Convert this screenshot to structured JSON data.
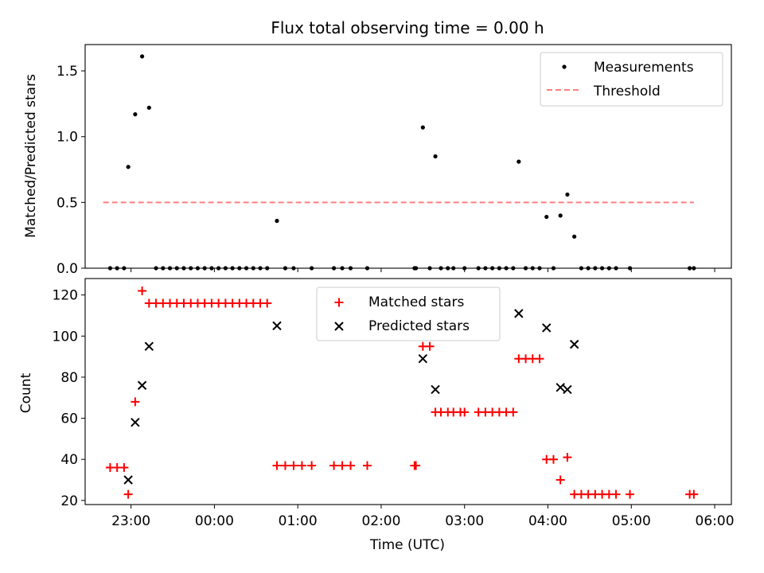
{
  "chart_data": [
    {
      "type": "scatter",
      "title": "Flux total observing time = 0.00 h",
      "xlabel": "",
      "ylabel": "Matched/Predicted stars",
      "xlim": [
        "22:27",
        "06:12"
      ],
      "ylim": [
        0,
        1.7
      ],
      "yticks": [
        0.0,
        0.5,
        1.0,
        1.5
      ],
      "ytick_labels": [
        "0.0",
        "0.5",
        "1.0",
        "1.5"
      ],
      "legend_position": "top-right",
      "series": [
        {
          "name": "Measurements",
          "kind": "dots",
          "color": "#000000",
          "points": [
            [
              "22:45",
              0
            ],
            [
              "22:50",
              0
            ],
            [
              "22:55",
              0
            ],
            [
              "22:58",
              0.77
            ],
            [
              "23:03",
              1.17
            ],
            [
              "23:08",
              1.61
            ],
            [
              "23:13",
              1.22
            ],
            [
              "23:18",
              0
            ],
            [
              "23:23",
              0
            ],
            [
              "23:28",
              0
            ],
            [
              "23:33",
              0
            ],
            [
              "23:38",
              0
            ],
            [
              "23:43",
              0
            ],
            [
              "23:48",
              0
            ],
            [
              "23:53",
              0
            ],
            [
              "23:58",
              0
            ],
            [
              "00:03",
              0
            ],
            [
              "00:08",
              0
            ],
            [
              "00:13",
              0
            ],
            [
              "00:18",
              0
            ],
            [
              "00:23",
              0
            ],
            [
              "00:28",
              0
            ],
            [
              "00:33",
              0
            ],
            [
              "00:38",
              0
            ],
            [
              "00:45",
              0.36
            ],
            [
              "00:51",
              0
            ],
            [
              "00:57",
              0
            ],
            [
              "01:10",
              0
            ],
            [
              "01:26",
              0
            ],
            [
              "01:32",
              0
            ],
            [
              "01:38",
              0
            ],
            [
              "01:50",
              0
            ],
            [
              "02:24",
              0
            ],
            [
              "02:25",
              0
            ],
            [
              "02:30",
              1.07
            ],
            [
              "02:35",
              0
            ],
            [
              "02:39",
              0.85
            ],
            [
              "02:43",
              0
            ],
            [
              "02:48",
              0
            ],
            [
              "02:52",
              0
            ],
            [
              "03:00",
              0
            ],
            [
              "03:10",
              0
            ],
            [
              "03:15",
              0
            ],
            [
              "03:20",
              0
            ],
            [
              "03:25",
              0
            ],
            [
              "03:30",
              0
            ],
            [
              "03:35",
              0
            ],
            [
              "03:39",
              0.81
            ],
            [
              "03:44",
              0
            ],
            [
              "03:49",
              0
            ],
            [
              "03:54",
              0
            ],
            [
              "03:59",
              0.39
            ],
            [
              "04:04",
              0
            ],
            [
              "04:09",
              0.4
            ],
            [
              "04:14",
              0.56
            ],
            [
              "04:19",
              0.24
            ],
            [
              "04:24",
              0
            ],
            [
              "04:29",
              0
            ],
            [
              "04:34",
              0
            ],
            [
              "04:39",
              0
            ],
            [
              "04:44",
              0
            ],
            [
              "04:49",
              0
            ],
            [
              "04:59",
              0
            ],
            [
              "05:42",
              0
            ],
            [
              "05:45",
              0
            ]
          ]
        },
        {
          "name": "Threshold",
          "kind": "dashed-line",
          "color": "#ff7f7f",
          "points": [
            [
              "22:40",
              0.5
            ],
            [
              "05:45",
              0.5
            ]
          ]
        }
      ]
    },
    {
      "type": "scatter",
      "title": "",
      "xlabel": "Time (UTC)",
      "ylabel": "Count",
      "xlim": [
        "22:27",
        "06:12"
      ],
      "ylim": [
        18,
        128
      ],
      "yticks": [
        20,
        40,
        60,
        80,
        100,
        120
      ],
      "ytick_labels": [
        "20",
        "40",
        "60",
        "80",
        "100",
        "120"
      ],
      "xticks": [
        "23:00",
        "00:00",
        "01:00",
        "02:00",
        "03:00",
        "04:00",
        "05:00",
        "06:00"
      ],
      "xtick_labels": [
        "23:00",
        "00:00",
        "01:00",
        "02:00",
        "03:00",
        "04:00",
        "05:00",
        "06:00"
      ],
      "legend_position": "top-center",
      "series": [
        {
          "name": "Matched stars",
          "kind": "plus",
          "color": "#ff0000",
          "points": [
            [
              "22:45",
              36
            ],
            [
              "22:50",
              36
            ],
            [
              "22:55",
              36
            ],
            [
              "22:58",
              23
            ],
            [
              "23:03",
              68
            ],
            [
              "23:08",
              122
            ],
            [
              "23:13",
              116
            ],
            [
              "23:18",
              116
            ],
            [
              "23:23",
              116
            ],
            [
              "23:28",
              116
            ],
            [
              "23:33",
              116
            ],
            [
              "23:38",
              116
            ],
            [
              "23:43",
              116
            ],
            [
              "23:48",
              116
            ],
            [
              "23:53",
              116
            ],
            [
              "23:58",
              116
            ],
            [
              "00:03",
              116
            ],
            [
              "00:08",
              116
            ],
            [
              "00:13",
              116
            ],
            [
              "00:18",
              116
            ],
            [
              "00:23",
              116
            ],
            [
              "00:28",
              116
            ],
            [
              "00:33",
              116
            ],
            [
              "00:38",
              116
            ],
            [
              "00:45",
              37
            ],
            [
              "00:51",
              37
            ],
            [
              "00:57",
              37
            ],
            [
              "01:03",
              37
            ],
            [
              "01:10",
              37
            ],
            [
              "01:26",
              37
            ],
            [
              "01:32",
              37
            ],
            [
              "01:38",
              37
            ],
            [
              "01:50",
              37
            ],
            [
              "02:24",
              37
            ],
            [
              "02:25",
              37
            ],
            [
              "02:30",
              95
            ],
            [
              "02:35",
              95
            ],
            [
              "02:39",
              63
            ],
            [
              "02:43",
              63
            ],
            [
              "02:48",
              63
            ],
            [
              "02:52",
              63
            ],
            [
              "02:57",
              63
            ],
            [
              "03:00",
              63
            ],
            [
              "03:10",
              63
            ],
            [
              "03:15",
              63
            ],
            [
              "03:20",
              63
            ],
            [
              "03:25",
              63
            ],
            [
              "03:30",
              63
            ],
            [
              "03:35",
              63
            ],
            [
              "03:39",
              89
            ],
            [
              "03:44",
              89
            ],
            [
              "03:49",
              89
            ],
            [
              "03:54",
              89
            ],
            [
              "03:59",
              40
            ],
            [
              "04:04",
              40
            ],
            [
              "04:09",
              30
            ],
            [
              "04:14",
              41
            ],
            [
              "04:19",
              23
            ],
            [
              "04:24",
              23
            ],
            [
              "04:29",
              23
            ],
            [
              "04:34",
              23
            ],
            [
              "04:39",
              23
            ],
            [
              "04:44",
              23
            ],
            [
              "04:49",
              23
            ],
            [
              "04:59",
              23
            ],
            [
              "05:42",
              23
            ],
            [
              "05:45",
              23
            ]
          ]
        },
        {
          "name": "Predicted stars",
          "kind": "x",
          "color": "#000000",
          "points": [
            [
              "22:58",
              30
            ],
            [
              "23:03",
              58
            ],
            [
              "23:08",
              76
            ],
            [
              "23:13",
              95
            ],
            [
              "00:45",
              105
            ],
            [
              "02:30",
              89
            ],
            [
              "02:39",
              74
            ],
            [
              "03:39",
              111
            ],
            [
              "03:59",
              104
            ],
            [
              "04:09",
              75
            ],
            [
              "04:14",
              74
            ],
            [
              "04:19",
              96
            ]
          ]
        }
      ]
    }
  ]
}
